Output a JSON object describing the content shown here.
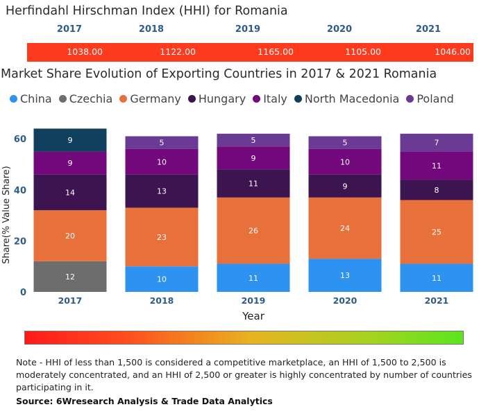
{
  "hhi": {
    "title": "Herfindahl Hirschman Index (HHI) for Romania",
    "years": [
      "2017",
      "2018",
      "2019",
      "2020",
      "2021"
    ],
    "values": [
      "1038.00",
      "1122.00",
      "1165.00",
      "1105.00",
      "1046.00"
    ],
    "bar_color": "#ff3b1e"
  },
  "chart_data": {
    "type": "bar",
    "stacked": true,
    "title": "Market Share Evolution of Exporting Countries in 2017 & 2021 Romania",
    "xlabel": "Year",
    "ylabel": "Share(% Value Share)",
    "ylim": [
      0,
      65
    ],
    "yticks": [
      0,
      20,
      40,
      60
    ],
    "legend_position": "top",
    "grid": false,
    "categories": [
      "2017",
      "2018",
      "2019",
      "2020",
      "2021"
    ],
    "series": [
      {
        "name": "China",
        "color": "#2e93f0",
        "values": [
          0,
          10,
          11,
          13,
          11
        ]
      },
      {
        "name": "Czechia",
        "color": "#6d6d6d",
        "values": [
          12,
          0,
          0,
          0,
          0
        ]
      },
      {
        "name": "Germany",
        "color": "#e8703a",
        "values": [
          20,
          23,
          26,
          24,
          25
        ]
      },
      {
        "name": "Hungary",
        "color": "#3c1450",
        "values": [
          14,
          13,
          11,
          9,
          8
        ]
      },
      {
        "name": "Italy",
        "color": "#72087c",
        "values": [
          9,
          10,
          9,
          10,
          11
        ]
      },
      {
        "name": "North Macedonia",
        "color": "#11405e",
        "values": [
          9,
          0,
          0,
          0,
          0
        ]
      },
      {
        "name": "Poland",
        "color": "#6a3a94",
        "values": [
          0,
          5,
          5,
          5,
          7
        ]
      }
    ]
  },
  "note": "Note - HHI of less than 1,500 is considered a competitive marketplace, an HHI of 1,500 to 2,500 is moderately concentrated, and an HHI of 2,500 or greater is highly concentrated by number of countries participating in it.",
  "source": "Source: 6Wresearch Analysis & Trade Data Analytics"
}
